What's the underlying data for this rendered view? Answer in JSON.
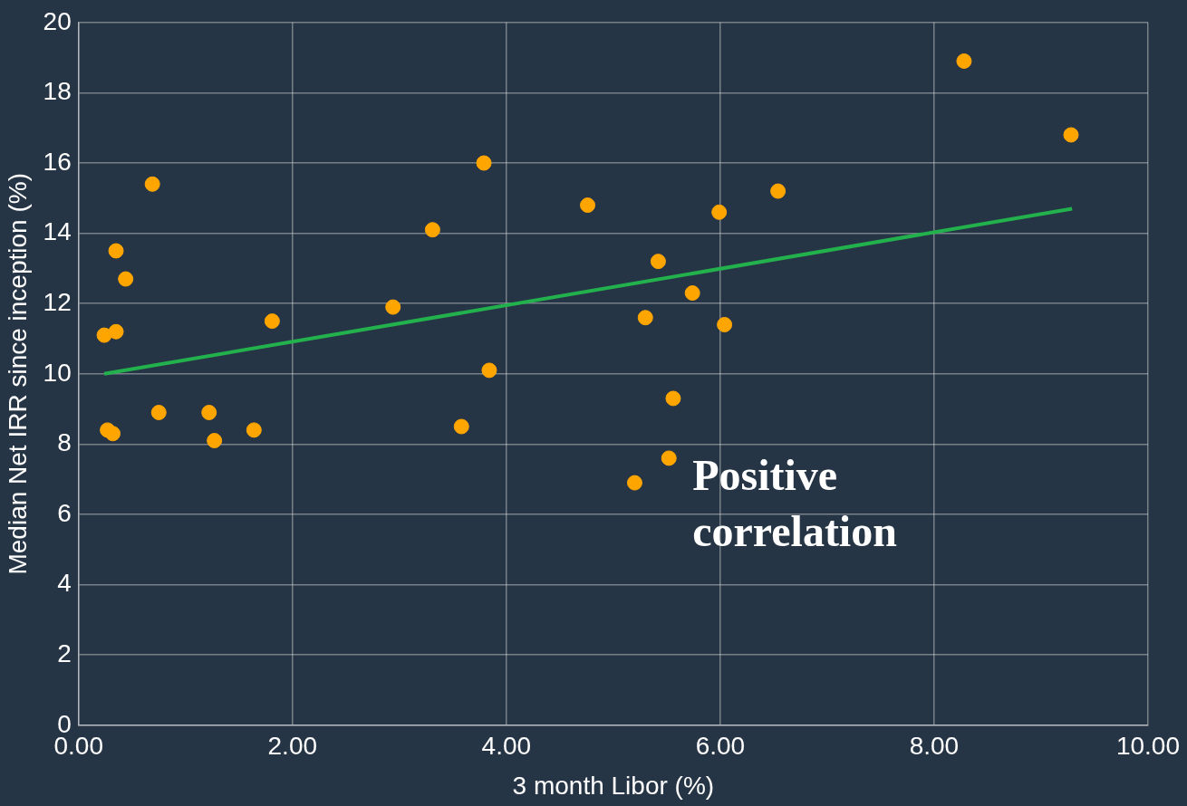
{
  "chart_data": {
    "type": "scatter",
    "xlabel": "3 month Libor (%)",
    "ylabel": "Median Net IRR since inception (%)",
    "xlim": [
      0,
      10
    ],
    "xticks": [
      {
        "value": 0,
        "label": "0.00"
      },
      {
        "value": 2,
        "label": "2.00"
      },
      {
        "value": 4,
        "label": "4.00"
      },
      {
        "value": 6,
        "label": "6.00"
      },
      {
        "value": 8,
        "label": "8.00"
      },
      {
        "value": 10,
        "label": "10.00"
      }
    ],
    "ylim": [
      0,
      20
    ],
    "yticks": [
      0,
      2,
      4,
      6,
      8,
      10,
      12,
      14,
      16,
      18,
      20
    ],
    "grid": true,
    "legend": false,
    "marker": "circle",
    "annotations": [
      "Positive correlation"
    ],
    "series": [
      {
        "type": "scatter",
        "color": "#ffa500",
        "x": [
          0.24,
          0.27,
          0.32,
          0.35,
          0.35,
          0.44,
          0.69,
          0.75,
          1.22,
          1.27,
          1.64,
          1.81,
          2.94,
          3.31,
          3.58,
          3.79,
          3.84,
          4.76,
          5.2,
          5.3,
          5.42,
          5.52,
          5.56,
          5.74,
          5.99,
          6.04,
          6.54,
          8.28,
          9.28
        ],
        "values": [
          11.1,
          8.4,
          8.3,
          11.2,
          13.5,
          12.7,
          15.4,
          8.9,
          8.9,
          8.1,
          8.4,
          11.5,
          11.9,
          14.1,
          8.5,
          16.0,
          10.1,
          14.8,
          6.9,
          11.6,
          13.2,
          7.6,
          9.3,
          12.3,
          14.6,
          11.4,
          15.2,
          18.9,
          16.8
        ]
      },
      {
        "type": "line",
        "marker": "none",
        "color": "#22b14c",
        "x": [
          0.24,
          9.29
        ],
        "values": [
          10.0,
          14.7
        ]
      }
    ]
  }
}
